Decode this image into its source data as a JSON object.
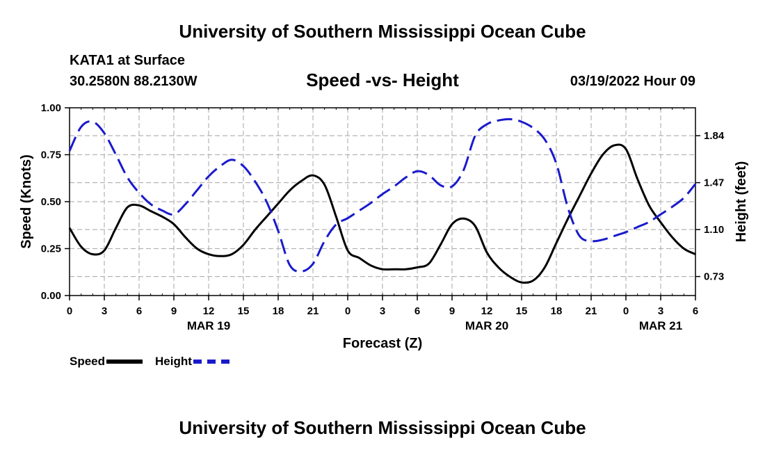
{
  "header": {
    "title": "University of Southern Mississippi Ocean Cube",
    "station": "KATA1 at Surface",
    "coordinates": "30.2580N  88.2130W",
    "subtitle": "Speed -vs- Height",
    "datetime": "03/19/2022 Hour 09"
  },
  "footer": {
    "title": "University of Southern Mississippi Ocean Cube"
  },
  "legend": {
    "speed_label": "Speed",
    "height_label": "Height"
  },
  "colors": {
    "speed": "#000000",
    "height": "#1a1acc",
    "grid": "#b4b4b4"
  },
  "chart_data": {
    "type": "line",
    "title": "Speed -vs- Height",
    "xlabel": "Forecast (Z)",
    "ylabel_left": "Speed (Knots)",
    "ylabel_right": "Height (feet)",
    "x_unit": "forecast hours from MAR 19 00Z",
    "xlim": [
      0,
      54
    ],
    "x_ticks": [
      0,
      3,
      6,
      9,
      12,
      15,
      18,
      21,
      24,
      27,
      30,
      33,
      36,
      39,
      42,
      45,
      48,
      51,
      54
    ],
    "x_tick_labels": [
      "0",
      "3",
      "6",
      "9",
      "12",
      "15",
      "18",
      "21",
      "0",
      "3",
      "6",
      "9",
      "12",
      "15",
      "18",
      "21",
      "0",
      "3",
      "6"
    ],
    "date_labels": [
      {
        "text": "MAR 19",
        "x": 12
      },
      {
        "text": "MAR 20",
        "x": 36
      },
      {
        "text": "MAR 21",
        "x": 51
      }
    ],
    "ylim_left": [
      0,
      1
    ],
    "y_left_ticks": [
      0,
      0.25,
      0.5,
      0.75,
      1
    ],
    "y_left_tick_labels": [
      "0.00",
      "0.25",
      "0.50",
      "0.75",
      "1.00"
    ],
    "ylim_right": [
      0.58,
      2.06
    ],
    "y_right_ticks": [
      0.73,
      1.1,
      1.47,
      1.84
    ],
    "y_right_tick_labels": [
      "0.73",
      "1.10",
      "1.47",
      "1.84"
    ],
    "grid": true,
    "series": [
      {
        "name": "Speed",
        "axis": "left",
        "style": "solid",
        "x": [
          0,
          1,
          2,
          3,
          4,
          5,
          6,
          7,
          8,
          9,
          10,
          11,
          12,
          13,
          14,
          15,
          16,
          17,
          18,
          19,
          20,
          21,
          22,
          23,
          24,
          25,
          26,
          27,
          28,
          29,
          30,
          31,
          32,
          33,
          34,
          35,
          36,
          37,
          38,
          39,
          40,
          41,
          42,
          43,
          44,
          45,
          46,
          47,
          48,
          49,
          50,
          51,
          52,
          53,
          54
        ],
        "values": [
          0.36,
          0.26,
          0.22,
          0.24,
          0.36,
          0.47,
          0.48,
          0.45,
          0.42,
          0.38,
          0.31,
          0.25,
          0.22,
          0.21,
          0.22,
          0.27,
          0.35,
          0.42,
          0.49,
          0.56,
          0.61,
          0.64,
          0.59,
          0.42,
          0.24,
          0.2,
          0.16,
          0.14,
          0.14,
          0.14,
          0.15,
          0.17,
          0.27,
          0.38,
          0.41,
          0.37,
          0.23,
          0.15,
          0.1,
          0.07,
          0.08,
          0.15,
          0.28,
          0.41,
          0.53,
          0.65,
          0.75,
          0.8,
          0.78,
          0.62,
          0.48,
          0.39,
          0.31,
          0.25,
          0.22
        ]
      },
      {
        "name": "Height",
        "axis": "right",
        "style": "dashed",
        "x": [
          0,
          1,
          2,
          3,
          4,
          5,
          6,
          7,
          8,
          9,
          10,
          11,
          12,
          13,
          14,
          15,
          16,
          17,
          18,
          19,
          20,
          21,
          22,
          23,
          24,
          25,
          26,
          27,
          28,
          29,
          30,
          31,
          32,
          33,
          34,
          35,
          36,
          37,
          38,
          39,
          40,
          41,
          42,
          43,
          44,
          45,
          46,
          47,
          48,
          49,
          50,
          51,
          52,
          53,
          54
        ],
        "values": [
          1.72,
          1.91,
          1.95,
          1.86,
          1.69,
          1.51,
          1.39,
          1.3,
          1.25,
          1.22,
          1.3,
          1.41,
          1.52,
          1.6,
          1.65,
          1.6,
          1.48,
          1.32,
          1.09,
          0.82,
          0.77,
          0.83,
          1.01,
          1.14,
          1.19,
          1.25,
          1.31,
          1.38,
          1.44,
          1.51,
          1.56,
          1.53,
          1.45,
          1.44,
          1.57,
          1.84,
          1.93,
          1.96,
          1.97,
          1.95,
          1.9,
          1.81,
          1.62,
          1.27,
          1.05,
          1.01,
          1.02,
          1.05,
          1.08,
          1.12,
          1.16,
          1.22,
          1.28,
          1.35,
          1.46
        ]
      }
    ]
  }
}
